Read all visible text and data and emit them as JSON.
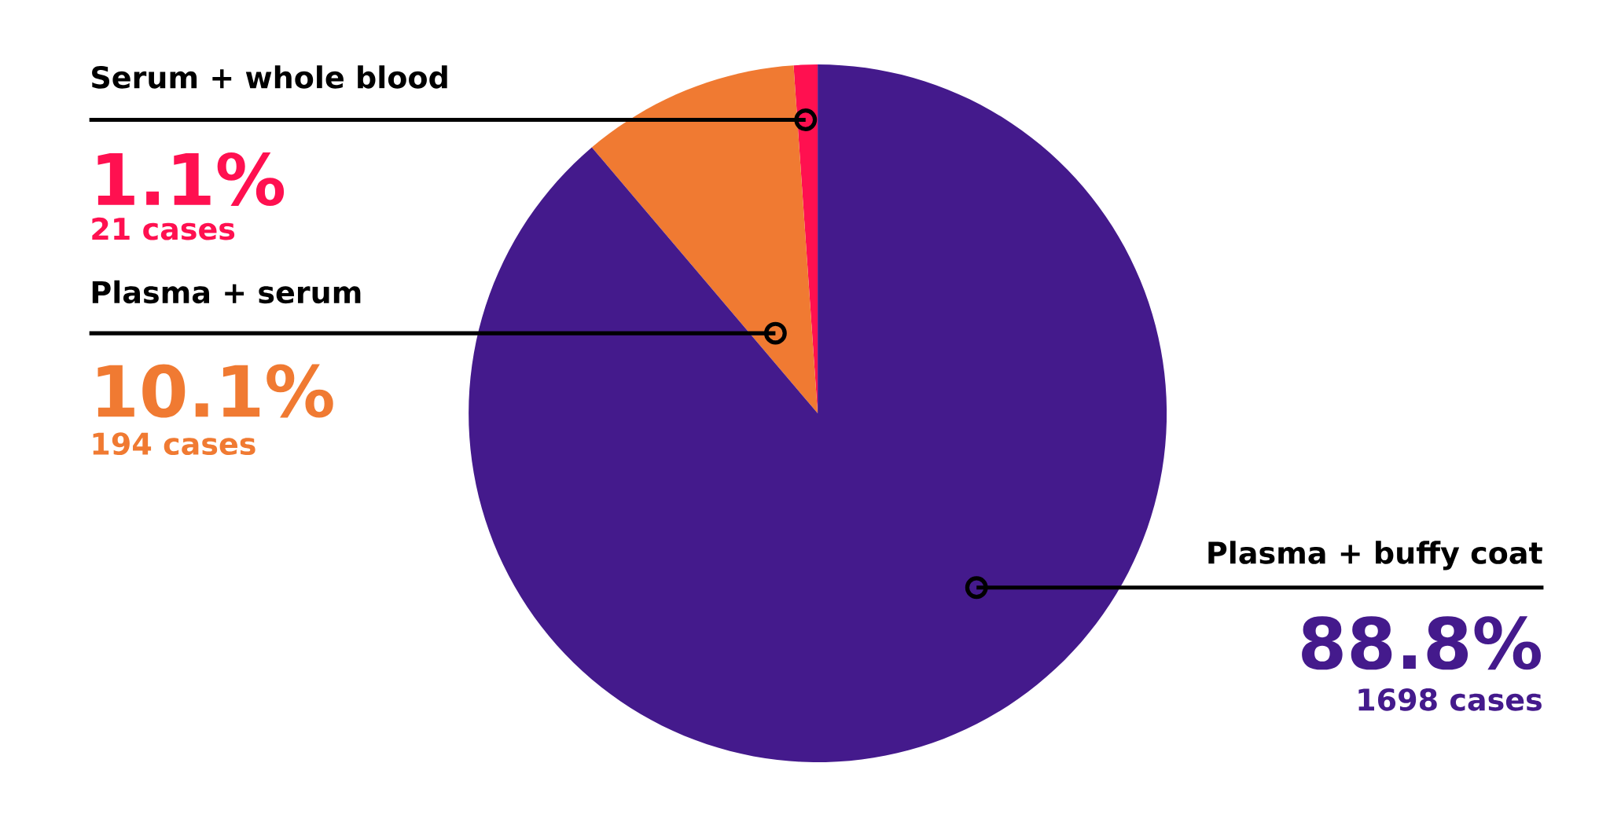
{
  "chart_data": {
    "type": "pie",
    "categories": [
      "Serum + whole blood",
      "Plasma + serum",
      "Plasma + buffy coat"
    ],
    "values": [
      1.1,
      10.1,
      88.8
    ],
    "colors": [
      "#ff1050",
      "#f07a32",
      "#441a8c"
    ],
    "value_labels": [
      "1.1%",
      "10.1%",
      "88.8%"
    ],
    "annotations": [
      "21 cases",
      "194 cases",
      "1698 cases"
    ]
  }
}
